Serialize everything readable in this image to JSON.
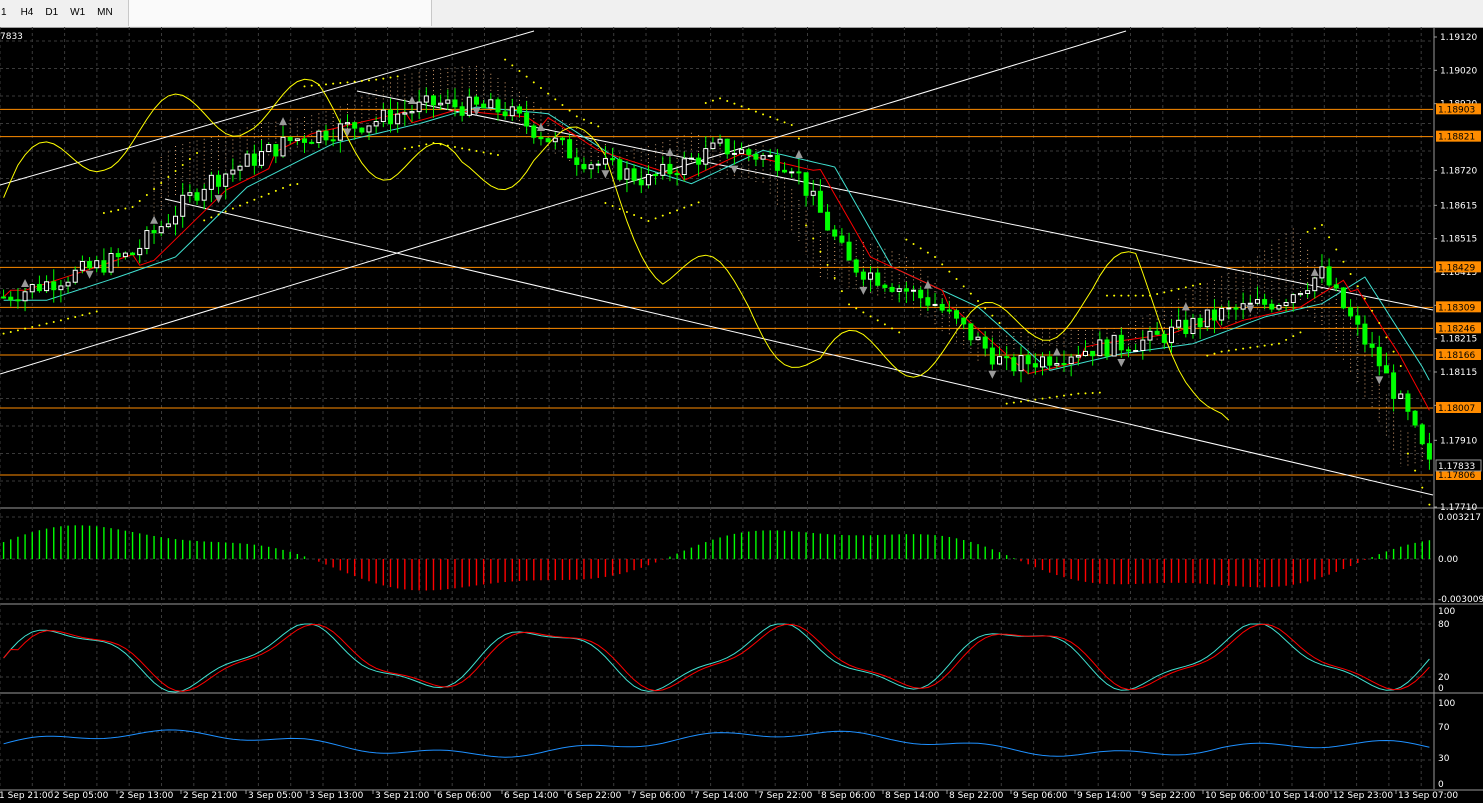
{
  "toolbar": {
    "timeframes": [
      "1",
      "H4",
      "D1",
      "W1",
      "MN"
    ]
  },
  "chart": {
    "symbol_fragment": "7833",
    "price_axis": [
      "1.19120",
      "1.19020",
      "1.18920",
      "1.18720",
      "1.18615",
      "1.18515",
      "1.18415",
      "1.18315",
      "1.18215",
      "1.18115",
      "1.18015",
      "1.17910",
      "1.17710"
    ],
    "price_tags": {
      "h1": "1.18903",
      "h2": "1.18821",
      "h3": "1.18429",
      "h4": "1.18309",
      "h5": "1.18246",
      "h6": "1.18166",
      "h7": "1.18007",
      "h8": "1.17806",
      "current": "1.17833"
    },
    "macd_axis": [
      "0.003217",
      "0.00",
      "-0.003009"
    ],
    "stoch_axis": [
      "100",
      "80",
      "20",
      "0"
    ],
    "rsi_axis": [
      "100",
      "70",
      "30",
      "0"
    ],
    "time_axis": [
      "1 Sep 21:00",
      "2 Sep 05:00",
      "2 Sep 13:00",
      "2 Sep 21:00",
      "3 Sep 05:00",
      "3 Sep 13:00",
      "3 Sep 21:00",
      "6 Sep 06:00",
      "6 Sep 14:00",
      "6 Sep 22:00",
      "7 Sep 06:00",
      "7 Sep 14:00",
      "7 Sep 22:00",
      "8 Sep 06:00",
      "8 Sep 14:00",
      "8 Sep 22:00",
      "9 Sep 06:00",
      "9 Sep 14:00",
      "9 Sep 22:00",
      "10 Sep 06:00",
      "10 Sep 14:00",
      "12 Sep 23:00",
      "13 Sep 07:00"
    ],
    "colors": {
      "background": "#000000",
      "grid": "#3a3a3a",
      "bull": "#ffffff",
      "bear": "#00ff00",
      "hline": "#ff8c00",
      "trend": "#ffffff",
      "macd_pos": "#00ff00",
      "macd_neg": "#ff0000",
      "stoch_main": "#40e0d0",
      "stoch_signal": "#ff0000",
      "rsi": "#1e90ff",
      "kijun": "#ff0000",
      "tenkan": "#40e0d0",
      "chikou": "#ffff00",
      "sar": "#ffff00"
    },
    "indicators": [
      "ichimoku-cloud",
      "parabolic-sar",
      "fractals",
      "macd",
      "stochastic",
      "rsi"
    ]
  }
}
